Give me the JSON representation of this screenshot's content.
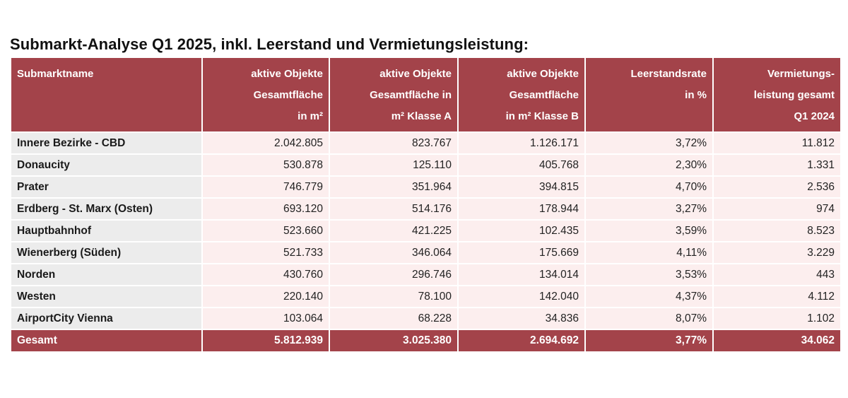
{
  "title": "Submarkt-Analyse Q1 2025, inkl. Leerstand und Vermietungsleistung:",
  "colors": {
    "header_bg": "#a3434a",
    "row_bg": "#fceeee",
    "name_bg": "#ececec"
  },
  "header": [
    {
      "lines": [
        "Submarktname"
      ]
    },
    {
      "lines": [
        "aktive Objekte",
        "Gesamtfläche",
        "in m²"
      ]
    },
    {
      "lines": [
        "aktive Objekte",
        "Gesamtfläche in",
        "m² Klasse A"
      ]
    },
    {
      "lines": [
        "aktive Objekte",
        "Gesamtfläche",
        "in m² Klasse B"
      ]
    },
    {
      "lines": [
        "Leerstandsrate",
        "in %"
      ]
    },
    {
      "lines": [
        "Vermietungs-",
        "leistung gesamt",
        "Q1 2024"
      ]
    }
  ],
  "rows": [
    {
      "name": "Innere Bezirke - CBD",
      "total": "2.042.805",
      "klasse_a": "823.767",
      "klasse_b": "1.126.171",
      "leerstand": "3,72%",
      "vermietung": "11.812"
    },
    {
      "name": "Donaucity",
      "total": "530.878",
      "klasse_a": "125.110",
      "klasse_b": "405.768",
      "leerstand": "2,30%",
      "vermietung": "1.331"
    },
    {
      "name": "Prater",
      "total": "746.779",
      "klasse_a": "351.964",
      "klasse_b": "394.815",
      "leerstand": "4,70%",
      "vermietung": "2.536"
    },
    {
      "name": "Erdberg - St. Marx (Osten)",
      "total": "693.120",
      "klasse_a": "514.176",
      "klasse_b": "178.944",
      "leerstand": "3,27%",
      "vermietung": "974"
    },
    {
      "name": "Hauptbahnhof",
      "total": "523.660",
      "klasse_a": "421.225",
      "klasse_b": "102.435",
      "leerstand": "3,59%",
      "vermietung": "8.523"
    },
    {
      "name": "Wienerberg (Süden)",
      "total": "521.733",
      "klasse_a": "346.064",
      "klasse_b": "175.669",
      "leerstand": "4,11%",
      "vermietung": "3.229"
    },
    {
      "name": "Norden",
      "total": "430.760",
      "klasse_a": "296.746",
      "klasse_b": "134.014",
      "leerstand": "3,53%",
      "vermietung": "443"
    },
    {
      "name": "Westen",
      "total": "220.140",
      "klasse_a": "78.100",
      "klasse_b": "142.040",
      "leerstand": "4,37%",
      "vermietung": "4.112"
    },
    {
      "name": "AirportCity Vienna",
      "total": "103.064",
      "klasse_a": "68.228",
      "klasse_b": "34.836",
      "leerstand": "8,07%",
      "vermietung": "1.102"
    }
  ],
  "footer": {
    "name": "Gesamt",
    "total": "5.812.939",
    "klasse_a": "3.025.380",
    "klasse_b": "2.694.692",
    "leerstand": "3,77%",
    "vermietung": "34.062"
  }
}
